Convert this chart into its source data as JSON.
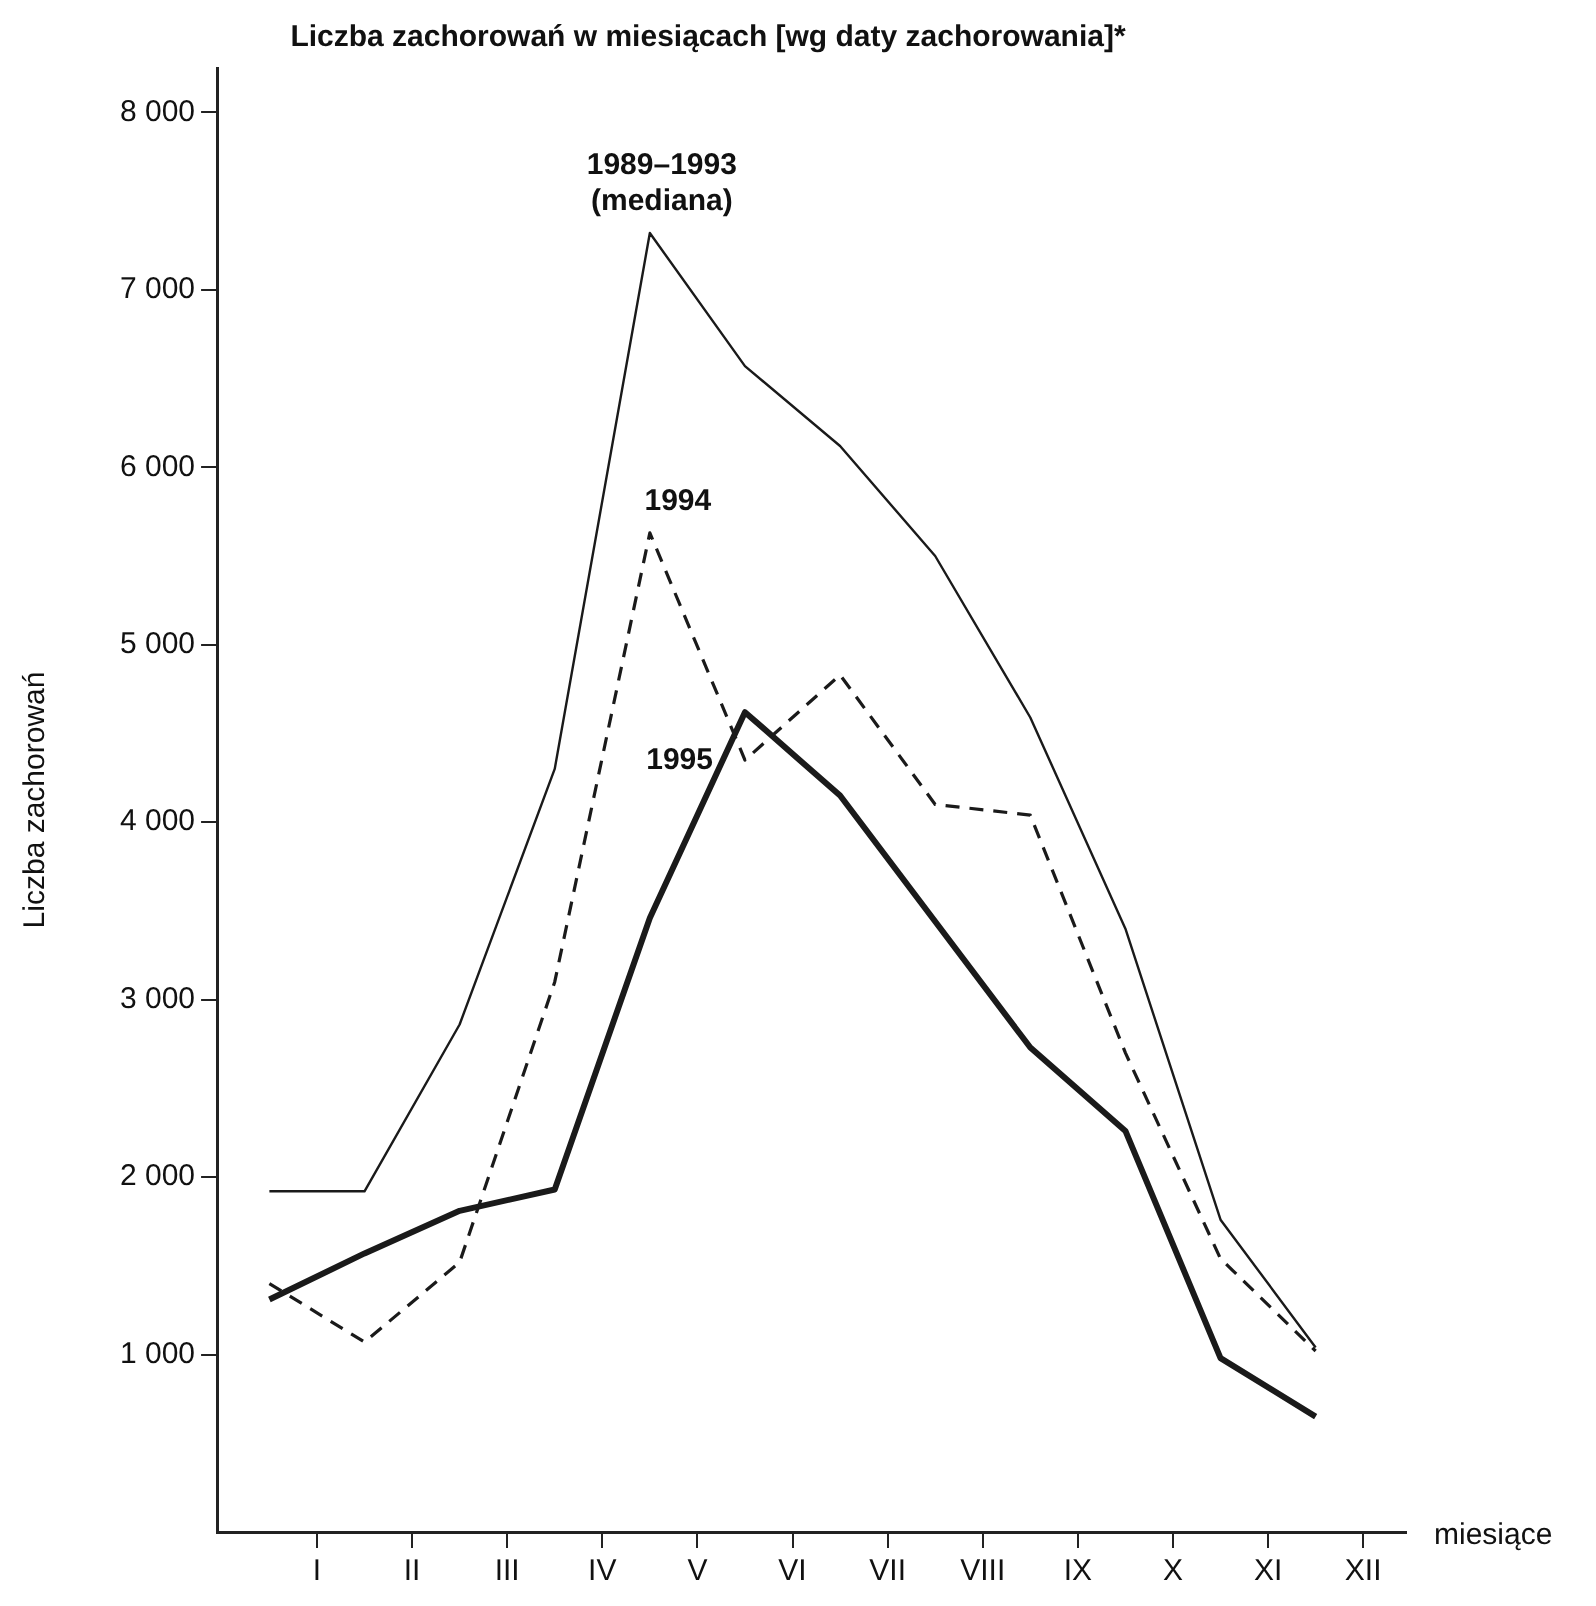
{
  "chart_data": {
    "type": "line",
    "title": "Liczba zachorowań w miesiącach [wg daty zachorowania]*",
    "xlabel": "miesiące",
    "ylabel": "Liczba zachorowań",
    "categories": [
      null,
      "I",
      null,
      "II",
      null,
      "III",
      null,
      "IV",
      null,
      "V",
      null,
      "VI",
      null,
      "VII",
      null,
      "VIII",
      null,
      "IX",
      null,
      "X",
      null,
      "XI",
      null,
      "XII"
    ],
    "ylim": [
      0,
      8250
    ],
    "yticks": [
      {
        "value": 1000,
        "label": "1 000"
      },
      {
        "value": 2000,
        "label": "2 000"
      },
      {
        "value": 3000,
        "label": "3 000"
      },
      {
        "value": 4000,
        "label": "4 000"
      },
      {
        "value": 5000,
        "label": "5 000"
      },
      {
        "value": 6000,
        "label": "6 000"
      },
      {
        "value": 7000,
        "label": "7 000"
      },
      {
        "value": 8000,
        "label": "8 000"
      }
    ],
    "series": [
      {
        "name": "1989–1993 (mediana)",
        "color": "#1a1a1a",
        "line_style": "solid",
        "values": [
          1920,
          null,
          1920,
          null,
          2860,
          null,
          4300,
          null,
          7320,
          null,
          6570,
          null,
          6120,
          null,
          5500,
          null,
          4590,
          null,
          3400,
          null,
          1760,
          null,
          1040,
          null
        ]
      },
      {
        "name": "1994",
        "color": "#1a1a1a",
        "line_style": "dashed",
        "values": [
          1400,
          null,
          1070,
          null,
          1520,
          null,
          3100,
          null,
          5630,
          null,
          4350,
          null,
          4830,
          null,
          4100,
          null,
          4040,
          null,
          2700,
          null,
          1540,
          null,
          1020,
          null
        ]
      },
      {
        "name": "1995",
        "color": "#1a1a1a",
        "line_style": "solid",
        "values": [
          1310,
          null,
          1570,
          null,
          1810,
          null,
          1930,
          null,
          3460,
          null,
          4620,
          null,
          4150,
          null,
          3440,
          null,
          2730,
          null,
          2260,
          null,
          980,
          null,
          650,
          null
        ]
      }
    ],
    "grid": false,
    "legend": false,
    "marker": "none"
  }
}
